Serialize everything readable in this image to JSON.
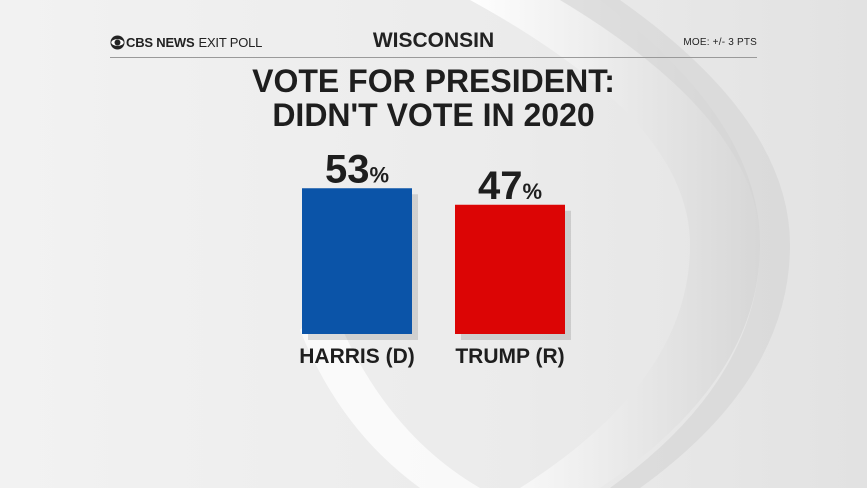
{
  "header": {
    "brand": "CBS NEWS",
    "brand_sub": "EXIT POLL",
    "state": "WISCONSIN",
    "moe": "MOE: +/- 3 PTS"
  },
  "colors": {
    "democrat": "#0b54a8",
    "republican": "#dc0505",
    "text": "#1e1e1e"
  },
  "chart_data": {
    "type": "bar",
    "title": "VOTE FOR PRESIDENT:",
    "subtitle": "DIDN'T VOTE IN 2020",
    "categories": [
      "HARRIS (D)",
      "TRUMP (R)"
    ],
    "values": [
      53,
      47
    ],
    "unit": "%",
    "value_labels": [
      "53",
      "47"
    ],
    "colors": [
      "#0b54a8",
      "#dc0505"
    ],
    "ylim": [
      0,
      100
    ],
    "grid": false
  }
}
